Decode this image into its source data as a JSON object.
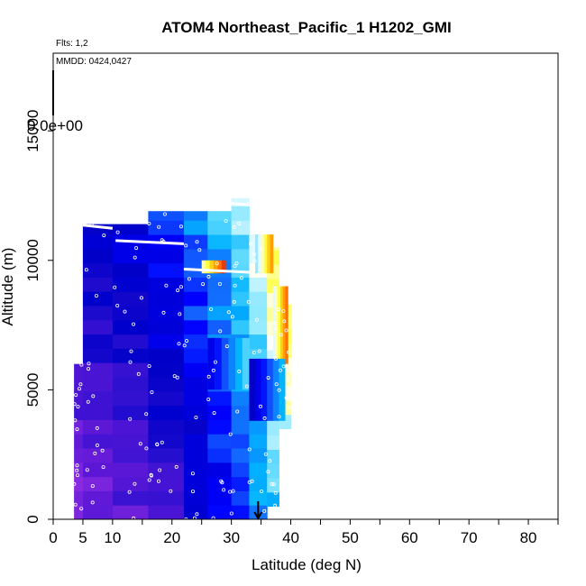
{
  "chart_data": {
    "type": "heatmap",
    "title": "ATOM4 Northeast_Pacific_1 H1202_GMI",
    "flights_label": "Flts: 1,2",
    "date_label": "MMDD: 0424,0427",
    "colorbar_label": "0.0e+00",
    "xlabel": "Latitude (deg N)",
    "ylabel": "Altitude (m)",
    "xlim": [
      0,
      85
    ],
    "ylim": [
      0,
      18000
    ],
    "x_ticks": [
      0,
      5,
      10,
      20,
      30,
      40,
      50,
      60,
      70,
      80
    ],
    "y_ticks": [
      0,
      5000,
      10000,
      15000
    ],
    "grid": false,
    "surface_arrow_latitude": 34.5,
    "color_scale": [
      "#8a2be2",
      "#5b17d6",
      "#2a0fd0",
      "#0000c8",
      "#0000ff",
      "#1464ff",
      "#00b4ff",
      "#7fe6ff",
      "#ffffff",
      "#ffff40",
      "#ffb000",
      "#ff6000",
      "#c80000"
    ],
    "columns": [
      {
        "lat": [
          3.5,
          5
        ],
        "alt": [
          0,
          6000
        ],
        "level": 0.02
      },
      {
        "lat": [
          5,
          10
        ],
        "alt": [
          0,
          11400
        ],
        "level": 0.05
      },
      {
        "lat": [
          10,
          16
        ],
        "alt": [
          0,
          11400
        ],
        "level": 0.08
      },
      {
        "lat": [
          16,
          22
        ],
        "alt": [
          0,
          11900
        ],
        "level": 0.14
      },
      {
        "lat": [
          22,
          26
        ],
        "alt": [
          0,
          11900
        ],
        "level": 0.22
      },
      {
        "lat": [
          26,
          30
        ],
        "alt": [
          0,
          11900
        ],
        "level": 0.3
      },
      {
        "lat": [
          30,
          33
        ],
        "alt": [
          0,
          12400
        ],
        "level": 0.38
      },
      {
        "lat": [
          33,
          36
        ],
        "alt": [
          0,
          11000
        ],
        "level": 0.45
      },
      {
        "lat": [
          36,
          38
        ],
        "alt": [
          500,
          10500
        ],
        "level": 0.52
      },
      {
        "lat": [
          38,
          40
        ],
        "alt": [
          3500,
          8300
        ],
        "level": 0.58
      }
    ],
    "highlights": [
      {
        "lat": [
          25,
          29
        ],
        "alt": [
          9500,
          10000
        ],
        "level": 0.95
      },
      {
        "lat": [
          34,
          37
        ],
        "alt": [
          9500,
          11000
        ],
        "level": 0.85
      },
      {
        "lat": [
          37,
          39.5
        ],
        "alt": [
          6000,
          9000
        ],
        "level": 0.9
      },
      {
        "lat": [
          26,
          33
        ],
        "alt": [
          5000,
          7000
        ],
        "level": 0.55
      },
      {
        "lat": [
          33,
          39
        ],
        "alt": [
          3800,
          6200
        ],
        "level": 0.5
      }
    ],
    "flight_track_segments": [
      {
        "lat": [
          5,
          10
        ],
        "alt": 11300
      },
      {
        "lat": [
          10.5,
          22
        ],
        "alt": 10700
      },
      {
        "lat": [
          22,
          33
        ],
        "alt": 9600
      },
      {
        "lat": [
          27,
          33
        ],
        "alt": 12200
      }
    ],
    "sample_point_count": 160
  }
}
